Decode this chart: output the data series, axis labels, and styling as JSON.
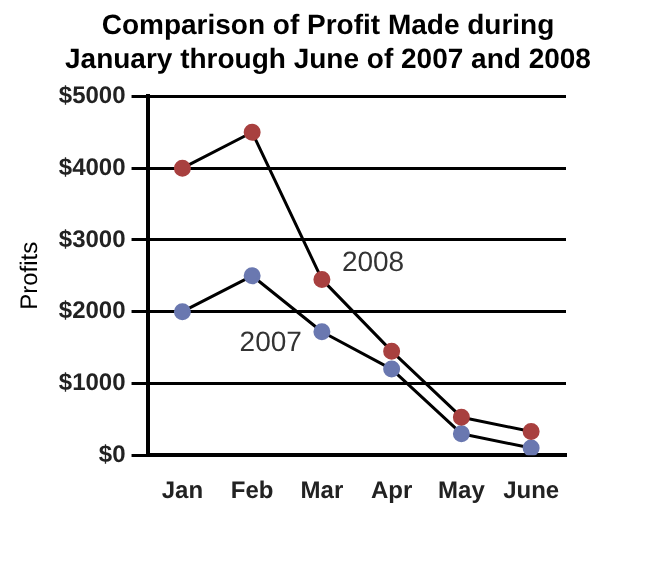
{
  "chart_data": {
    "type": "line",
    "title": "Comparison of Profit Made during January through June of 2007 and 2008",
    "ylabel": "Profits",
    "categories": [
      "Jan",
      "Feb",
      "Mar",
      "Apr",
      "May",
      "June"
    ],
    "series": [
      {
        "name": "2008",
        "color": "#a8403f",
        "values": [
          4000,
          4500,
          2450,
          1450,
          530,
          330
        ]
      },
      {
        "name": "2007",
        "color": "#6a78b0",
        "values": [
          2000,
          2500,
          1720,
          1200,
          300,
          100
        ]
      }
    ],
    "ylim": [
      0,
      5000
    ],
    "yticks": [
      {
        "value": 0,
        "label": "$0"
      },
      {
        "value": 1000,
        "label": "$1000"
      },
      {
        "value": 2000,
        "label": "$2000"
      },
      {
        "value": 3000,
        "label": "$3000"
      },
      {
        "value": 4000,
        "label": "$4000"
      },
      {
        "value": 5000,
        "label": "$5000"
      }
    ],
    "grid": "y",
    "marker": "circle",
    "legend": false
  }
}
